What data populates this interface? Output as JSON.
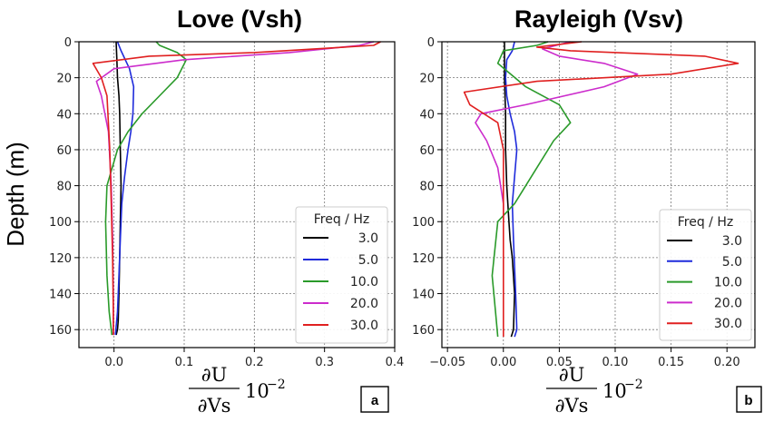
{
  "figure": {
    "ylabel": "Depth (m)",
    "xlabel_main": "∂U",
    "xlabel_denom": "∂Vs",
    "xlabel_factor": "10",
    "xlabel_exp": "−2"
  },
  "chart_data": [
    {
      "type": "line",
      "panel_label": "a",
      "title": "Love (Vsh)",
      "ylabel": "Depth (m)",
      "xlim": [
        -0.05,
        0.4
      ],
      "ylim": [
        0,
        170
      ],
      "y_inverted": true,
      "xticks": [
        0.0,
        0.1,
        0.2,
        0.3,
        0.4
      ],
      "xtick_labels": [
        "0.0",
        "0.1",
        "0.2",
        "0.3",
        "0.4"
      ],
      "yticks": [
        0,
        20,
        40,
        60,
        80,
        100,
        120,
        140,
        160
      ],
      "ytick_labels": [
        "0",
        "20",
        "40",
        "60",
        "80",
        "100",
        "120",
        "140",
        "160"
      ],
      "grid": true,
      "legend": {
        "title": "Freq / Hz",
        "placement": "lower-right"
      },
      "series": [
        {
          "name": "3.0",
          "color": "#000000",
          "x": [
            0.003,
            0.004,
            0.005,
            0.007,
            0.008,
            0.009,
            0.01,
            0.009,
            0.008,
            0.007,
            0.006,
            0.005,
            0.003
          ],
          "y": [
            0,
            10,
            20,
            30,
            40,
            60,
            80,
            100,
            120,
            140,
            155,
            160,
            163
          ]
        },
        {
          "name": "5.0",
          "color": "#1f2bdb",
          "x": [
            0.005,
            0.01,
            0.022,
            0.028,
            0.027,
            0.024,
            0.02,
            0.015,
            0.011,
            0.009,
            0.007,
            0.005,
            0.002
          ],
          "y": [
            0,
            5,
            15,
            25,
            40,
            50,
            60,
            75,
            90,
            110,
            130,
            150,
            163
          ]
        },
        {
          "name": "10.0",
          "color": "#2a9a2a",
          "x": [
            0.06,
            0.065,
            0.09,
            0.103,
            0.09,
            0.065,
            0.04,
            0.02,
            0.005,
            -0.01,
            -0.012,
            -0.01,
            -0.007,
            -0.003
          ],
          "y": [
            0,
            2,
            6,
            10,
            20,
            30,
            40,
            50,
            60,
            80,
            100,
            130,
            150,
            163
          ]
        },
        {
          "name": "20.0",
          "color": "#cc2ccc",
          "x": [
            0.37,
            0.35,
            0.25,
            0.1,
            0.0,
            -0.025,
            -0.018,
            -0.008,
            -0.004,
            -0.002,
            -0.001,
            -0.001,
            -0.001
          ],
          "y": [
            0,
            2,
            6,
            10,
            15,
            22,
            30,
            50,
            80,
            110,
            140,
            160,
            163
          ]
        },
        {
          "name": "30.0",
          "color": "#e02020",
          "x": [
            0.38,
            0.37,
            0.2,
            0.05,
            -0.03,
            -0.018,
            -0.01,
            -0.006,
            -0.004,
            -0.002,
            -0.001,
            -0.001
          ],
          "y": [
            0,
            2,
            6,
            8,
            12,
            20,
            30,
            60,
            90,
            120,
            150,
            163
          ]
        }
      ]
    },
    {
      "type": "line",
      "panel_label": "b",
      "title": "Rayleigh  (Vsv)",
      "xlim": [
        -0.055,
        0.225
      ],
      "ylim": [
        0,
        170
      ],
      "y_inverted": true,
      "xticks": [
        -0.05,
        0.0,
        0.05,
        0.1,
        0.15,
        0.2
      ],
      "xtick_labels": [
        "−0.05",
        "0.00",
        "0.05",
        "0.10",
        "0.15",
        "0.20"
      ],
      "yticks": [
        0,
        20,
        40,
        60,
        80,
        100,
        120,
        140,
        160
      ],
      "ytick_labels": [
        "0",
        "20",
        "40",
        "60",
        "80",
        "100",
        "120",
        "140",
        "160"
      ],
      "grid": true,
      "legend": {
        "title": "Freq / Hz",
        "placement": "lower-right"
      },
      "series": [
        {
          "name": "3.0",
          "color": "#000000",
          "x": [
            0.001,
            0.001,
            0.002,
            0.002,
            0.003,
            0.004,
            0.005,
            0.006,
            0.008,
            0.01,
            0.009,
            0.007
          ],
          "y": [
            0,
            20,
            40,
            60,
            80,
            90,
            100,
            110,
            120,
            140,
            160,
            164
          ]
        },
        {
          "name": "5.0",
          "color": "#1f2bdb",
          "x": [
            0.01,
            0.008,
            0.003,
            0.002,
            0.003,
            0.006,
            0.01,
            0.012,
            0.01,
            0.008,
            0.009,
            0.011,
            0.012,
            0.01
          ],
          "y": [
            0,
            5,
            10,
            20,
            30,
            40,
            50,
            60,
            75,
            90,
            110,
            140,
            160,
            164
          ]
        },
        {
          "name": "10.0",
          "color": "#2a9a2a",
          "x": [
            0.04,
            0.03,
            0.0,
            -0.005,
            0.02,
            0.05,
            0.06,
            0.045,
            0.03,
            0.01,
            -0.005,
            -0.01,
            -0.007,
            -0.005
          ],
          "y": [
            0,
            2,
            5,
            12,
            25,
            35,
            45,
            55,
            70,
            90,
            100,
            130,
            150,
            164
          ]
        },
        {
          "name": "20.0",
          "color": "#cc2ccc",
          "x": [
            0.06,
            0.035,
            0.05,
            0.09,
            0.12,
            0.09,
            0.02,
            -0.02,
            -0.025,
            -0.015,
            -0.005,
            0.0,
            0.0
          ],
          "y": [
            0,
            4,
            8,
            12,
            18,
            25,
            35,
            40,
            45,
            55,
            70,
            90,
            100
          ]
        },
        {
          "name": "30.0",
          "color": "#e02020",
          "x": [
            0.07,
            0.03,
            0.06,
            0.18,
            0.21,
            0.15,
            0.03,
            -0.035,
            -0.03,
            -0.005,
            0.0,
            0.0,
            0.0
          ],
          "y": [
            0,
            3,
            5,
            8,
            12,
            18,
            22,
            28,
            35,
            45,
            60,
            100,
            164
          ]
        }
      ]
    }
  ]
}
